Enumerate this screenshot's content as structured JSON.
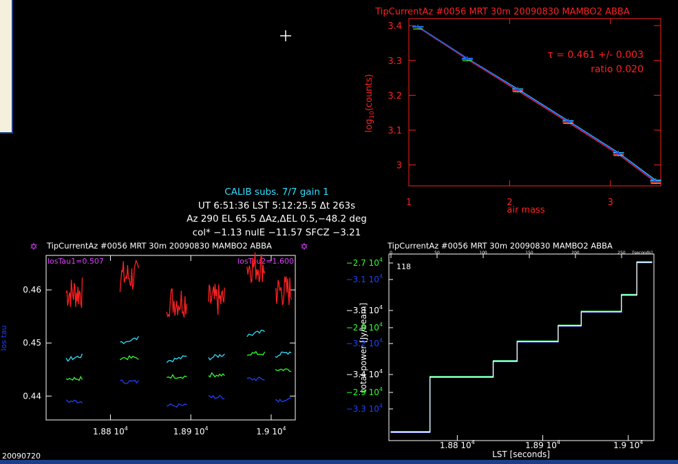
{
  "window": {
    "footer_date": "20090720"
  },
  "info": {
    "line1": "CALIB  subs. 7/7 gain 1",
    "line2": "UT 6:51:36  LST 5:12:25.5  Δt 263s",
    "line3": "Az 290  EL 65.5  ΔAz,ΔEL 0.5,−48.2 deg",
    "line4": "col* −1.13  nulE −11.57  SFCZ −3.21"
  },
  "colors": {
    "red": "#ff2020",
    "cyan": "#30e0ff",
    "green": "#30ff30",
    "blue": "#2040ff",
    "magenta": "#e040ff"
  },
  "chart_data": [
    {
      "type": "line",
      "title": "TipCurrentAz #0056  MRT 30m   20090830  MAMBO2  ABBA",
      "xlabel": "air mass",
      "ylabel_prefix": "log",
      "ylabel_sub": "10",
      "ylabel_suffix": "(counts)",
      "xlim": [
        1.0,
        3.5
      ],
      "ylim": [
        2.94,
        3.42
      ],
      "xticks": [
        1,
        2,
        3
      ],
      "xtick_labels": [
        "1",
        "2",
        "3"
      ],
      "yticks": [
        3.0,
        3.1,
        3.2,
        3.3,
        3.4
      ],
      "ytick_labels": [
        "3",
        "3.1",
        "3.2",
        "3.3",
        "3.4"
      ],
      "annotation": "τ =  0.461 +/-  0.003",
      "annotation2": "ratio 0.020",
      "x": [
        1.09,
        1.58,
        2.08,
        2.58,
        3.08,
        3.45
      ],
      "series": [
        {
          "color": "red",
          "values": [
            3.395,
            3.303,
            3.213,
            3.122,
            3.03,
            2.95
          ]
        },
        {
          "color": "cyan",
          "values": [
            3.397,
            3.306,
            3.218,
            3.127,
            3.035,
            2.956
          ]
        },
        {
          "color": "blue",
          "values": [
            3.396,
            3.305,
            3.216,
            3.125,
            3.033,
            2.953
          ]
        }
      ]
    },
    {
      "type": "scatter",
      "title": "TipCurrentAz #0056  MRT 30m   20090830  MAMBO2  ABBA",
      "ylabel": "los tau",
      "legend_left": "losTau1=0.507",
      "legend_right": "losTau2=1.600",
      "xlim": [
        18720,
        19030
      ],
      "ylim": [
        0.4355,
        0.4665
      ],
      "xticks": [
        18800,
        18900,
        19000
      ],
      "xtick_labels": [
        "1.88 10",
        "1.89 10",
        "1.9 10"
      ],
      "xtick_exp": "4",
      "yticks": [
        0.44,
        0.45,
        0.46
      ],
      "ytick_labels": [
        "0.44",
        "0.45",
        "0.46"
      ],
      "segments": [
        {
          "x0": 18745,
          "x1": 18765,
          "red": 0.4595,
          "cyan": 0.4472,
          "green": 0.4433,
          "blue": 0.439
        },
        {
          "x0": 18812,
          "x1": 18835,
          "red": 0.4625,
          "cyan": 0.4505,
          "green": 0.4472,
          "blue": 0.4427
        },
        {
          "x0": 18870,
          "x1": 18895,
          "red": 0.458,
          "cyan": 0.447,
          "green": 0.4437,
          "blue": 0.4382
        },
        {
          "x0": 18922,
          "x1": 18942,
          "red": 0.458,
          "cyan": 0.4475,
          "green": 0.444,
          "blue": 0.4398
        },
        {
          "x0": 18970,
          "x1": 18992,
          "red": 0.4645,
          "cyan": 0.4518,
          "green": 0.448,
          "blue": 0.4432
        },
        {
          "x0": 19005,
          "x1": 19025,
          "red": 0.4598,
          "cyan": 0.448,
          "green": 0.445,
          "blue": 0.4393
        }
      ]
    },
    {
      "type": "line",
      "title": "TipCurrentAz #0056  MRT 30m   20090830  MAMBO2  ABBA",
      "xlabel": "LST [seconds]",
      "ylabel": "total power [Jy/beam]",
      "corner_label": "118",
      "top_axis_labels": [
        "0",
        "50",
        "100",
        "150",
        "200",
        "250"
      ],
      "top_axis_unit": "[seconds]",
      "xlim": [
        18720,
        19030
      ],
      "xticks": [
        18800,
        18900,
        19000
      ],
      "xtick_labels": [
        "1.88 10",
        "1.89 10",
        "1.9 10"
      ],
      "xtick_exp": "4",
      "ytick_labels": [
        {
          "text": "−2.7 10",
          "exp": "4",
          "color": "green"
        },
        {
          "text": "−3.1 10",
          "exp": "4",
          "color": "blue"
        },
        {
          "text": "−3.3 10",
          "exp": "4",
          "color": "white"
        },
        {
          "text": "−2.8 10",
          "exp": "4",
          "color": "green"
        },
        {
          "text": "−3.2 10",
          "exp": "4",
          "color": "blue"
        },
        {
          "text": "−3.4 10",
          "exp": "4",
          "color": "white"
        },
        {
          "text": "−2.9 10",
          "exp": "4",
          "color": "green"
        },
        {
          "text": "−3.3 10",
          "exp": "4",
          "color": "blue"
        }
      ],
      "ylim": [
        0,
        1
      ],
      "steps": [
        {
          "x0": 18722,
          "x1": 18768,
          "y": 0.045
        },
        {
          "x0": 18768,
          "x1": 18842,
          "y": 0.34
        },
        {
          "x0": 18842,
          "x1": 18870,
          "y": 0.425
        },
        {
          "x0": 18870,
          "x1": 18918,
          "y": 0.53
        },
        {
          "x0": 18918,
          "x1": 18945,
          "y": 0.615
        },
        {
          "x0": 18945,
          "x1": 18992,
          "y": 0.69
        },
        {
          "x0": 18992,
          "x1": 19010,
          "y": 0.78
        },
        {
          "x0": 19010,
          "x1": 19028,
          "y": 0.955
        }
      ]
    }
  ]
}
